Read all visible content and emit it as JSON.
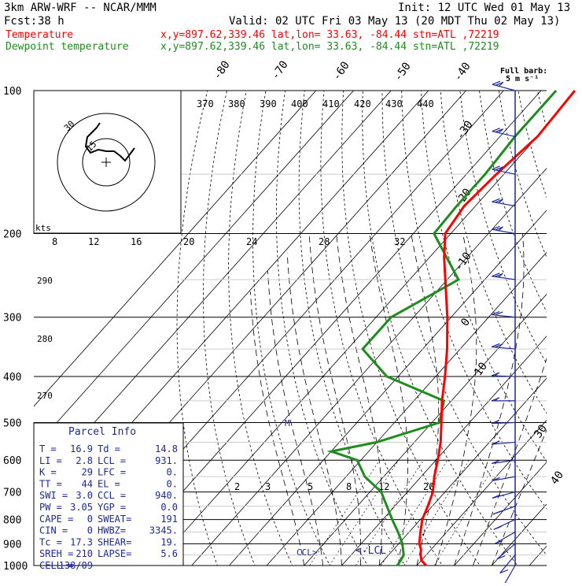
{
  "header": {
    "model": "3km ARW-WRF -- NCAR/MMM",
    "init": "Init: 12 UTC Wed 01 May 13",
    "fcst_label": "Fcst:",
    "fcst_value": "38 h",
    "valid": "Valid: 02 UTC Fri 03 May 13 (20 MDT Thu 02 May 13)",
    "temp_label": "Temperature",
    "temp_info": "x,y=897.62,339.46   lat,lon= 33.63, -84.44  stn=ATL ,72219",
    "dew_label": "Dewpoint temperature",
    "dew_info": "x,y=897.62,339.46   lat,lon= 33.63, -84.44  stn=ATL ,72219"
  },
  "colors": {
    "temperature": "#ff0000",
    "dewpoint": "#1e8c1e",
    "parcel_info": "#1e2896",
    "wind_barbs": "#1e2896",
    "isobars": "#000000"
  },
  "hodograph": {
    "speed_unit": "kts",
    "ring_labels": [
      "15",
      "30"
    ],
    "path": [
      [
        -8,
        -50
      ],
      [
        -12,
        -44
      ],
      [
        -18,
        -38
      ],
      [
        -24,
        -32
      ],
      [
        -26,
        -20
      ],
      [
        -20,
        -12
      ],
      [
        -10,
        -16
      ],
      [
        0,
        -14
      ],
      [
        10,
        -14
      ],
      [
        18,
        -8
      ],
      [
        24,
        -2
      ],
      [
        30,
        -10
      ],
      [
        36,
        -18
      ]
    ]
  },
  "wind_barb_legend": {
    "title": "Full barb:",
    "value": "5 m s⁻¹"
  },
  "parcel_info": {
    "title": "Parcel Info",
    "rows": [
      [
        "T  =",
        "16.9",
        "Td =",
        "14.8"
      ],
      [
        "LI =",
        "2.8",
        "LCL =",
        "931."
      ],
      [
        "K  =",
        "29",
        "LFC =",
        "0."
      ],
      [
        "TT =",
        "44",
        "EL =",
        "0."
      ],
      [
        "SWI =",
        "3.0",
        "CCL =",
        "940."
      ],
      [
        "PW =",
        "3.05",
        "YGP =",
        "0.0"
      ],
      [
        "CAPE =",
        "0",
        "SWEAT=",
        "191"
      ],
      [
        "CIN =",
        "0",
        "HWBZ=",
        "3345."
      ],
      [
        "Tc =",
        "17.3",
        "SHEAR=",
        "19."
      ],
      [
        "SREH =",
        "210",
        "LAPSE=",
        "5.6"
      ],
      [
        "CELL =",
        "138/09",
        "",
        ""
      ]
    ]
  },
  "annotations": {
    "ccl": "CCL>",
    "lcl": "<-LCL",
    "m_marker": "M"
  },
  "chart_data": {
    "type": "line",
    "title": "Skew-T log-P sounding",
    "pressure_levels_hpa": [
      1000,
      900,
      800,
      700,
      600,
      500,
      400,
      300,
      200,
      100
    ],
    "isotherm_labels_c": [
      "-80",
      "-70",
      "-60",
      "-50",
      "-40",
      "-30",
      "-20",
      "-10",
      "0",
      "10",
      "30",
      "40"
    ],
    "theta_labels_k": [
      "370",
      "380",
      "390",
      "400",
      "410",
      "420",
      "430",
      "440"
    ],
    "theta_e_labels_k": [
      "290",
      "280",
      "270"
    ],
    "mixing_ratio_labels_upper": [
      "8",
      "12",
      "16",
      "20",
      "24",
      "28",
      "32"
    ],
    "mixing_ratio_labels_lower": [
      "2",
      "3",
      "5",
      "8",
      "12",
      "20"
    ],
    "series": [
      {
        "name": "Temperature",
        "points": [
          [
            1000,
            22.5
          ],
          [
            975,
            20.0
          ],
          [
            950,
            18.5
          ],
          [
            925,
            17.3
          ],
          [
            900,
            15.5
          ],
          [
            850,
            13.0
          ],
          [
            800,
            10.5
          ],
          [
            750,
            8.8
          ],
          [
            700,
            6.8
          ],
          [
            650,
            3.5
          ],
          [
            600,
            0.5
          ],
          [
            550,
            -3.0
          ],
          [
            500,
            -7.5
          ],
          [
            450,
            -12.5
          ],
          [
            400,
            -17.5
          ],
          [
            350,
            -23.5
          ],
          [
            300,
            -31.0
          ],
          [
            250,
            -40.5
          ],
          [
            225,
            -46.0
          ],
          [
            200,
            -51.5
          ],
          [
            175,
            -53.0
          ],
          [
            150,
            -52.0
          ],
          [
            125,
            -50.0
          ],
          [
            100,
            -51.0
          ]
        ]
      },
      {
        "name": "Dewpoint temperature",
        "points": [
          [
            1000,
            14.8
          ],
          [
            975,
            14.5
          ],
          [
            950,
            14.0
          ],
          [
            925,
            12.5
          ],
          [
            900,
            11.0
          ],
          [
            850,
            7.0
          ],
          [
            800,
            2.5
          ],
          [
            700,
            -7.0
          ],
          [
            650,
            -15.0
          ],
          [
            600,
            -21.0
          ],
          [
            575,
            -30.0
          ],
          [
            550,
            -20.0
          ],
          [
            500,
            -8.0
          ],
          [
            450,
            -12.0
          ],
          [
            400,
            -33.0
          ],
          [
            350,
            -46.0
          ],
          [
            300,
            -46.0
          ],
          [
            250,
            -37.0
          ],
          [
            200,
            -54.5
          ],
          [
            175,
            -55.0
          ],
          [
            150,
            -55.0
          ],
          [
            125,
            -56.0
          ],
          [
            100,
            -56.0
          ]
        ]
      }
    ],
    "wind_profile": [
      [
        1000,
        210,
        7
      ],
      [
        950,
        220,
        8
      ],
      [
        900,
        230,
        9
      ],
      [
        850,
        240,
        9
      ],
      [
        800,
        245,
        8
      ],
      [
        750,
        250,
        9
      ],
      [
        700,
        255,
        10
      ],
      [
        650,
        260,
        11
      ],
      [
        600,
        262,
        12
      ],
      [
        550,
        265,
        13
      ],
      [
        500,
        268,
        13
      ],
      [
        450,
        270,
        14
      ],
      [
        400,
        272,
        16
      ],
      [
        350,
        275,
        18
      ],
      [
        300,
        276,
        20
      ],
      [
        250,
        278,
        23
      ],
      [
        200,
        280,
        24
      ],
      [
        175,
        280,
        24
      ],
      [
        150,
        282,
        25
      ],
      [
        125,
        283,
        25
      ],
      [
        100,
        285,
        23
      ]
    ]
  }
}
